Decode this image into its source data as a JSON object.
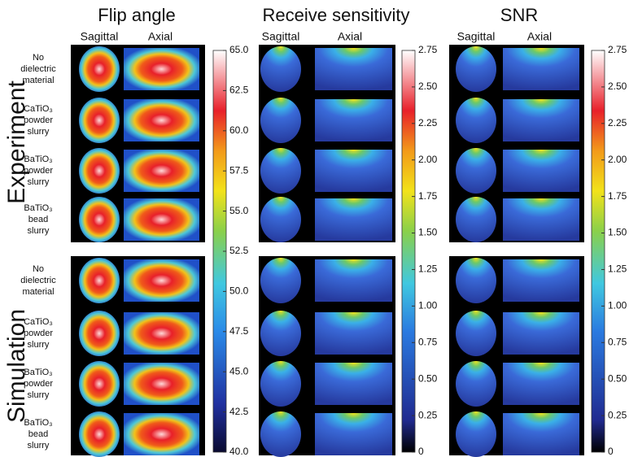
{
  "columns": [
    {
      "title": "Flip angle",
      "views": [
        "Sagittal",
        "Axial"
      ]
    },
    {
      "title": "Receive sensitivity",
      "views": [
        "Sagittal",
        "Axial"
      ]
    },
    {
      "title": "SNR",
      "views": [
        "Sagittal",
        "Axial"
      ]
    }
  ],
  "rows": [
    "Experiment",
    "Simulation"
  ],
  "conditions": [
    [
      "No",
      "dielectric",
      "material"
    ],
    [
      "CaTiO₃",
      "powder",
      "slurry"
    ],
    [
      "BaTiO₃",
      "powder",
      "slurry"
    ],
    [
      "BaTiO₃",
      "bead",
      "slurry"
    ]
  ],
  "colorbars": [
    {
      "lim": [
        40,
        65
      ],
      "ticks": [
        {
          "value": 40,
          "label": "40.0"
        },
        42.5,
        {
          "value": 45,
          "label": "45.0"
        },
        47.5,
        {
          "value": 50,
          "label": "50.0"
        },
        52.5,
        {
          "value": 55,
          "label": "55.0"
        },
        57.5,
        {
          "value": 60,
          "label": "60.0"
        },
        62.5,
        {
          "value": 65,
          "label": "65.0"
        }
      ]
    },
    {
      "lim": [
        0,
        2.75
      ],
      "ticks": [
        0,
        0.25,
        {
          "value": 0.5,
          "label": "0.50"
        },
        0.75,
        {
          "value": 1,
          "label": "1.00"
        },
        1.25,
        {
          "value": 1.5,
          "label": "1.50"
        },
        1.75,
        {
          "value": 2,
          "label": "2.00"
        },
        2.25,
        {
          "value": 2.5,
          "label": "2.50"
        },
        2.75
      ]
    },
    {
      "lim": [
        0,
        2.75
      ],
      "ticks": [
        0,
        0.25,
        {
          "value": 0.5,
          "label": "0.50"
        },
        0.75,
        {
          "value": 1,
          "label": "1.00"
        },
        1.25,
        {
          "value": 1.5,
          "label": "1.50"
        },
        1.75,
        {
          "value": 2,
          "label": "2.00"
        },
        2.25,
        {
          "value": 2.5,
          "label": "2.50"
        },
        2.75
      ]
    }
  ]
}
